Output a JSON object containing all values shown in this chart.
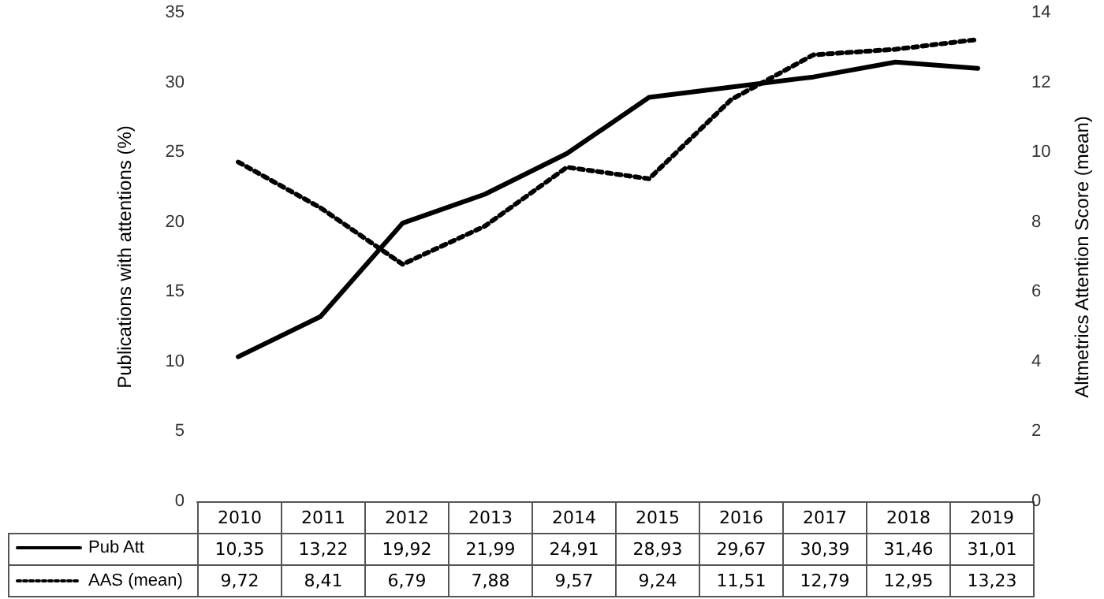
{
  "chart_data": {
    "type": "line",
    "ylabel": "Publications with attentions (%)",
    "y2label": "Altmetrics Attention Score (mean)",
    "categories": [
      "2010",
      "2011",
      "2012",
      "2013",
      "2014",
      "2015",
      "2016",
      "2017",
      "2018",
      "2019"
    ],
    "series": [
      {
        "name": "Pub Att",
        "color": "#000000",
        "line_style": "solid",
        "values": [
          10.35,
          13.22,
          19.92,
          21.99,
          24.91,
          28.93,
          29.67,
          30.39,
          31.46,
          31.01
        ],
        "value_labels": [
          "10,35",
          "13,22",
          "19,92",
          "21,99",
          "24,91",
          "28,93",
          "29,67",
          "30,39",
          "31,46",
          "31,01"
        ]
      },
      {
        "name": "AAS (mean)",
        "color": "#000000",
        "line_style": "dotted",
        "axis": "y2",
        "values": [
          9.72,
          8.41,
          6.79,
          7.88,
          9.57,
          9.24,
          11.51,
          12.79,
          12.95,
          13.23
        ],
        "value_labels": [
          "9,72",
          "8,41",
          "6,79",
          "7,88",
          "9,57",
          "9,24",
          "11,51",
          "12,79",
          "12,95",
          "13,23"
        ]
      }
    ],
    "ylim": [
      0,
      35
    ],
    "yticks": [
      0,
      5,
      10,
      15,
      20,
      25,
      30,
      35
    ],
    "y2lim": [
      0,
      14
    ],
    "y2ticks": [
      0,
      2,
      4,
      6,
      8,
      10,
      12,
      14
    ],
    "grid": false,
    "legend": "bottom",
    "marker": "none"
  }
}
